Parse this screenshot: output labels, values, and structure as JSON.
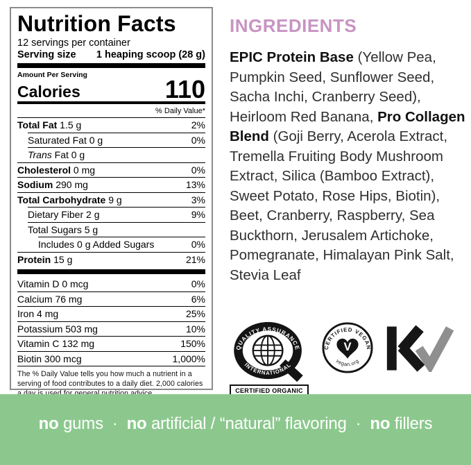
{
  "nutrition": {
    "title": "Nutrition Facts",
    "servings_per_container": "12 servings per container",
    "serving_size_label": "Serving size",
    "serving_size_value": "1 heaping scoop (28 g)",
    "amount_per_serving": "Amount Per Serving",
    "calories_label": "Calories",
    "calories_value": "110",
    "daily_value_header": "% Daily Value*",
    "rows": [
      {
        "name": "Total Fat",
        "amount": "1.5 g",
        "dv": "2%",
        "bold": true,
        "indent": 0
      },
      {
        "name": "Saturated Fat",
        "amount": "0 g",
        "dv": "0%",
        "indent": 1
      },
      {
        "name": "Trans",
        "amount": "Fat 0 g",
        "dv": "",
        "italic": true,
        "indent": 1
      },
      {
        "name": "Cholesterol",
        "amount": "0 mg",
        "dv": "0%",
        "bold": true,
        "indent": 0
      },
      {
        "name": "Sodium",
        "amount": "290 mg",
        "dv": "13%",
        "bold": true,
        "indent": 0
      },
      {
        "name": "Total Carbohydrate",
        "amount": "9 g",
        "dv": "3%",
        "bold": true,
        "indent": 0
      },
      {
        "name": "Dietary Fiber",
        "amount": "2 g",
        "dv": "9%",
        "indent": 1
      },
      {
        "name": "Total Sugars",
        "amount": "5 g",
        "dv": "",
        "indent": 1
      },
      {
        "name": "Includes 0 g Added Sugars",
        "amount": "",
        "dv": "0%",
        "indent": 2
      },
      {
        "name": "Protein",
        "amount": "15 g",
        "dv": "21%",
        "bold": true,
        "indent": 0
      }
    ],
    "vitamins": [
      {
        "name": "Vitamin D",
        "amount": "0 mcg",
        "dv": "0%"
      },
      {
        "name": "Calcium",
        "amount": "76 mg",
        "dv": "6%"
      },
      {
        "name": "Iron",
        "amount": "4 mg",
        "dv": "25%"
      },
      {
        "name": "Potassium",
        "amount": "503 mg",
        "dv": "10%"
      },
      {
        "name": "Vitamin C",
        "amount": "132 mg",
        "dv": "150%"
      },
      {
        "name": "Biotin",
        "amount": "300 mcg",
        "dv": "1,000%"
      }
    ],
    "footnote": "The % Daily Value tells you how much a nutrient in a serving of food contributes to a daily diet. 2,000 calories a day is used for general nutrition advice."
  },
  "ingredients": {
    "heading": "INGREDIENTS",
    "heading_color": "#c893c3",
    "segments": [
      {
        "text": "EPIC Protein Base",
        "bold": true
      },
      {
        "text": " (Yellow Pea, Pumpkin Seed, Sunflower Seed, Sacha Inchi, Cranberry Seed), Heirloom Red Banana, "
      },
      {
        "text": "Pro Collagen Blend",
        "bold": true
      },
      {
        "text": " (Goji Berry, Acerola Extract, Tremella Fruiting Body Mushroom Extract, Silica (Bamboo Extract), Sweet Potato, Rose Hips, Biotin), Beet, Cranberry, Raspberry, Sea Buckthorn, Jerusalem Artichoke, Pomegranate, Himalayan Pink Salt, Stevia Leaf"
      }
    ]
  },
  "certifications": {
    "organic": {
      "arc_top": "QUALITY ASSURANCE",
      "arc_bottom": "INTERNATIONAL",
      "box_label": "CERTIFIED ORGANIC"
    },
    "vegan": {
      "arc_top": "CERTIFIED VEGAN",
      "arc_bottom": "vegan.org",
      "heart_letter": "V"
    },
    "kosher": {
      "mark": "KV"
    }
  },
  "banner": {
    "background_color": "#8cc88e",
    "text_color": "#ffffff",
    "segments": [
      {
        "text": "no ",
        "bold": true
      },
      {
        "text": "gums"
      },
      {
        "text": "  ·  "
      },
      {
        "text": "no ",
        "bold": true
      },
      {
        "text": "artificial / “natural” flavoring"
      },
      {
        "text": "  ·  "
      },
      {
        "text": "no ",
        "bold": true
      },
      {
        "text": "fillers"
      }
    ]
  }
}
